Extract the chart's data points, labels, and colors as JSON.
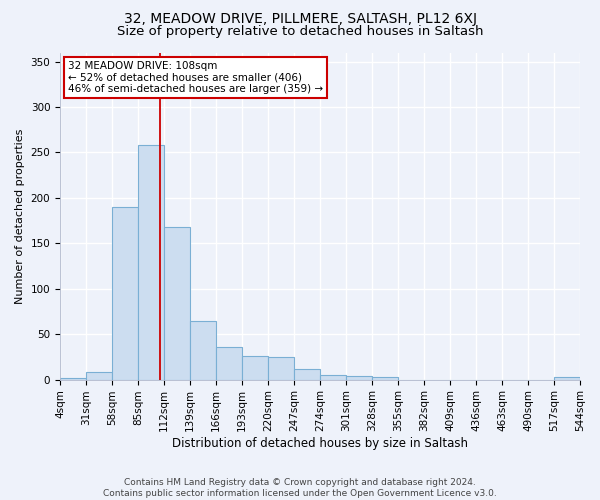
{
  "title1": "32, MEADOW DRIVE, PILLMERE, SALTASH, PL12 6XJ",
  "title2": "Size of property relative to detached houses in Saltash",
  "xlabel": "Distribution of detached houses by size in Saltash",
  "ylabel": "Number of detached properties",
  "bar_edges": [
    4,
    31,
    58,
    85,
    112,
    139,
    166,
    193,
    220,
    247,
    274,
    301,
    328,
    355,
    382,
    409,
    436,
    463,
    490,
    517,
    544
  ],
  "bar_heights": [
    2,
    8,
    190,
    258,
    168,
    65,
    36,
    26,
    25,
    12,
    5,
    4,
    3,
    0,
    0,
    0,
    0,
    0,
    0,
    3
  ],
  "bar_color": "#ccddf0",
  "bar_edge_color": "#7aafd4",
  "property_line_x": 108,
  "property_line_color": "#cc0000",
  "annotation_line1": "32 MEADOW DRIVE: 108sqm",
  "annotation_line2": "← 52% of detached houses are smaller (406)",
  "annotation_line3": "46% of semi-detached houses are larger (359) →",
  "annotation_box_color": "#ffffff",
  "annotation_box_edge": "#cc0000",
  "ylim": [
    0,
    360
  ],
  "yticks": [
    0,
    50,
    100,
    150,
    200,
    250,
    300,
    350
  ],
  "footer": "Contains HM Land Registry data © Crown copyright and database right 2024.\nContains public sector information licensed under the Open Government Licence v3.0.",
  "background_color": "#eef2fa",
  "plot_bg_color": "#eef2fa",
  "grid_color": "#ffffff",
  "title1_fontsize": 10,
  "title2_fontsize": 9.5,
  "xlabel_fontsize": 8.5,
  "ylabel_fontsize": 8,
  "tick_fontsize": 7.5,
  "footer_fontsize": 6.5
}
